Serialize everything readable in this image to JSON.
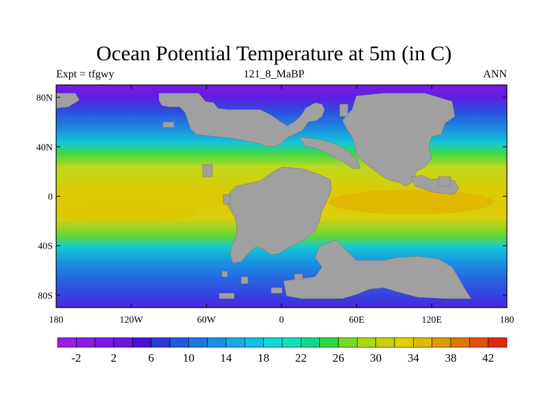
{
  "title": "Ocean Potential Temperature at 5m (in C)",
  "subtitle_left": "Expt = tfgwy",
  "subtitle_center": "121_8_MaBP",
  "subtitle_right": "ANN",
  "axes": {
    "x_ticks": [
      "180",
      "120W",
      "60W",
      "0",
      "60E",
      "120E",
      "180"
    ],
    "y_ticks": [
      "80N",
      "40N",
      "0",
      "40S",
      "80S"
    ]
  },
  "colorbar": {
    "min": -4,
    "max": 44,
    "step": 2,
    "labels": [
      "-2",
      "2",
      "6",
      "10",
      "14",
      "18",
      "22",
      "26",
      "30",
      "34",
      "38",
      "42"
    ],
    "colors": [
      "#9a1ee6",
      "#8a1ce6",
      "#7a18e6",
      "#6a18e0",
      "#4a10d8",
      "#2a3ad8",
      "#1e5ae0",
      "#1a78e0",
      "#1892e0",
      "#18aae0",
      "#14c0e0",
      "#10d8d8",
      "#10e0b8",
      "#10d890",
      "#30d840",
      "#78d828",
      "#a8d818",
      "#c8d010",
      "#e0d000",
      "#e0b800",
      "#e09a00",
      "#e07800",
      "#e05000",
      "#e02808"
    ]
  },
  "colors": {
    "land": "#a0a0a0",
    "polar": "#7a18e6",
    "cold": "#2a50e0",
    "cool": "#1a90e0",
    "mild": "#14c8d8",
    "warm": "#40d840",
    "hot": "#c0d81a",
    "tropic": "#e0c000"
  }
}
